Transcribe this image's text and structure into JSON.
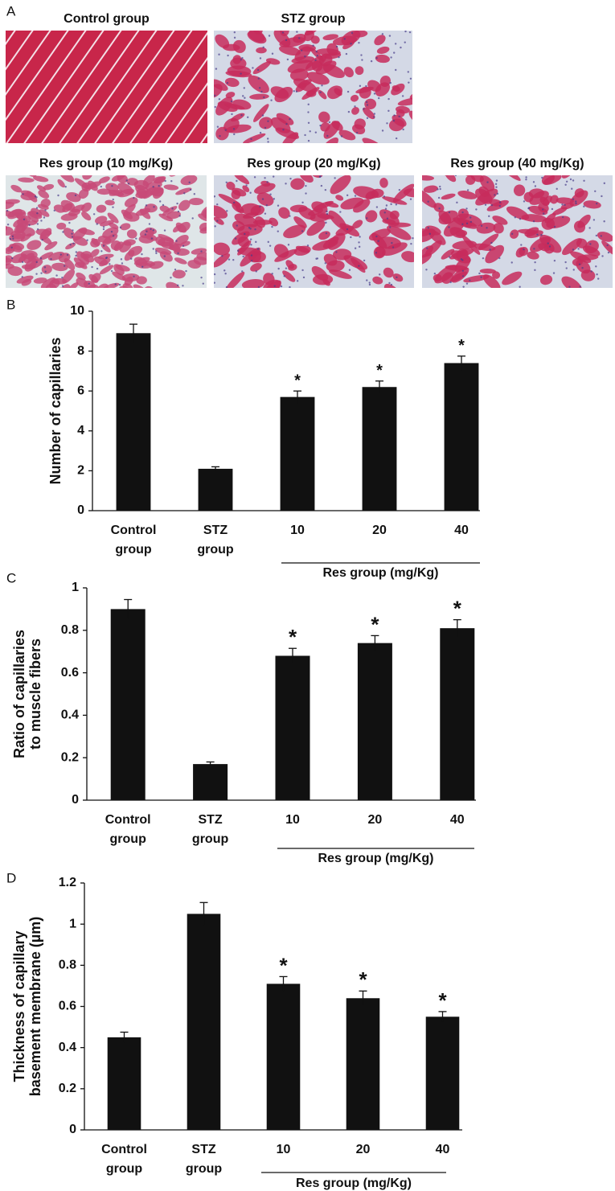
{
  "panel_a": {
    "label": "A",
    "images": [
      "Control group",
      "STZ group",
      "Res group (10 mg/Kg)",
      "Res group (20 mg/Kg)",
      "Res group (40 mg/Kg)"
    ]
  },
  "chart_data": [
    {
      "type": "bar",
      "panel": "B",
      "ylabel": [
        "Number of capillaries"
      ],
      "categories": [
        [
          "Control",
          "group"
        ],
        [
          "STZ",
          "group"
        ],
        [
          "10"
        ],
        [
          "20"
        ],
        [
          "40"
        ]
      ],
      "values": [
        8.9,
        2.1,
        5.7,
        6.2,
        7.4
      ],
      "errors": [
        0.45,
        0.1,
        0.3,
        0.3,
        0.35
      ],
      "annotations": [
        null,
        null,
        "*",
        "*",
        "*"
      ],
      "group_label": "Res group (mg/Kg)",
      "color": "#111111",
      "ylim": [
        0,
        10
      ],
      "yticks": [
        0,
        2,
        4,
        6,
        8,
        10
      ]
    },
    {
      "type": "bar",
      "panel": "C",
      "ylabel": [
        "Ratio of capillaries",
        "to muscle fibers"
      ],
      "categories": [
        [
          "Control",
          "group"
        ],
        [
          "STZ",
          "group"
        ],
        [
          "10"
        ],
        [
          "20"
        ],
        [
          "40"
        ]
      ],
      "values": [
        0.9,
        0.17,
        0.68,
        0.74,
        0.81
      ],
      "errors": [
        0.045,
        0.01,
        0.035,
        0.035,
        0.04
      ],
      "annotations": [
        null,
        null,
        "*",
        "*",
        "*"
      ],
      "group_label": "Res group (mg/Kg)",
      "color": "#111111",
      "ylim": [
        0,
        1
      ],
      "yticks": [
        0,
        0.2,
        0.4,
        0.6,
        0.8,
        1
      ]
    },
    {
      "type": "bar",
      "panel": "D",
      "ylabel": [
        "Thickness of capillary",
        "basement membrane (µm)"
      ],
      "categories": [
        [
          "Control",
          "group"
        ],
        [
          "STZ",
          "group"
        ],
        [
          "10"
        ],
        [
          "20"
        ],
        [
          "40"
        ]
      ],
      "values": [
        0.45,
        1.05,
        0.71,
        0.64,
        0.55
      ],
      "errors": [
        0.025,
        0.055,
        0.035,
        0.035,
        0.025
      ],
      "annotations": [
        null,
        null,
        "*",
        "*",
        "*"
      ],
      "group_label": "Res group (mg/Kg)",
      "color": "#111111",
      "ylim": [
        0,
        1.2
      ],
      "yticks": [
        0,
        0.2,
        0.4,
        0.6,
        0.8,
        1,
        1.2
      ]
    }
  ]
}
